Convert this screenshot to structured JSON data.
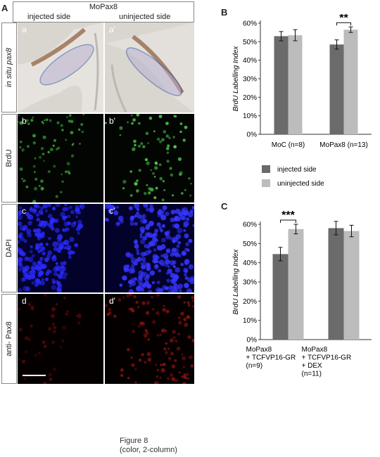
{
  "figure": {
    "panel_A_letter": "A",
    "panel_B_letter": "B",
    "panel_C_letter": "C",
    "header_title": "MoPax8",
    "header_left": "injected side",
    "header_right": "uninjected side",
    "row_labels": [
      "in situ pax8",
      "BrdU",
      "DAPI",
      "anti- Pax8"
    ],
    "panel_labels": [
      [
        "a",
        "a'"
      ],
      [
        "b",
        "b'"
      ],
      [
        "c",
        "c'"
      ],
      [
        "d",
        "d'"
      ]
    ],
    "caption_line1": "Figure 8",
    "caption_line2": "(color, 2-column)"
  },
  "chart_data": [
    {
      "type": "bar",
      "panel": "B",
      "ylabel": "BrdU Labelling Index",
      "ylim": [
        0,
        60
      ],
      "yticks": [
        "0%",
        "10%",
        "20%",
        "30%",
        "40%",
        "50%",
        "60%"
      ],
      "categories": [
        "MoC (n=8)",
        "MoPax8 (n=13)"
      ],
      "series": [
        {
          "name": "injected side",
          "color": "#6b6b6b",
          "values": [
            53,
            48.5
          ],
          "errors": [
            2.5,
            2.5
          ]
        },
        {
          "name": "uninjected side",
          "color": "#bcbcbc",
          "values": [
            53.5,
            56.5
          ],
          "errors": [
            3,
            1.5
          ]
        }
      ],
      "significance": [
        {
          "category": 1,
          "label": "**"
        }
      ],
      "legend": [
        {
          "label": "injected side",
          "color": "#6b6b6b"
        },
        {
          "label": "uninjected side",
          "color": "#bcbcbc"
        }
      ]
    },
    {
      "type": "bar",
      "panel": "C",
      "ylabel": "BrdU Labelling Index",
      "ylim": [
        0,
        60
      ],
      "yticks": [
        "0%",
        "10%",
        "20%",
        "30%",
        "40%",
        "50%",
        "60%"
      ],
      "categories": [
        [
          "MoPax8",
          "+ TCFVP16-GR",
          "(n=9)"
        ],
        [
          "MoPax8",
          "+ TCFVP16-GR",
          "+ DEX",
          "(n=11)"
        ]
      ],
      "series": [
        {
          "name": "injected side",
          "color": "#6b6b6b",
          "values": [
            44.5,
            58
          ],
          "errors": [
            3.5,
            3.5
          ]
        },
        {
          "name": "uninjected side",
          "color": "#bcbcbc",
          "values": [
            57.5,
            56.5
          ],
          "errors": [
            2.5,
            3
          ]
        }
      ],
      "significance": [
        {
          "category": 0,
          "label": "***"
        }
      ]
    }
  ]
}
